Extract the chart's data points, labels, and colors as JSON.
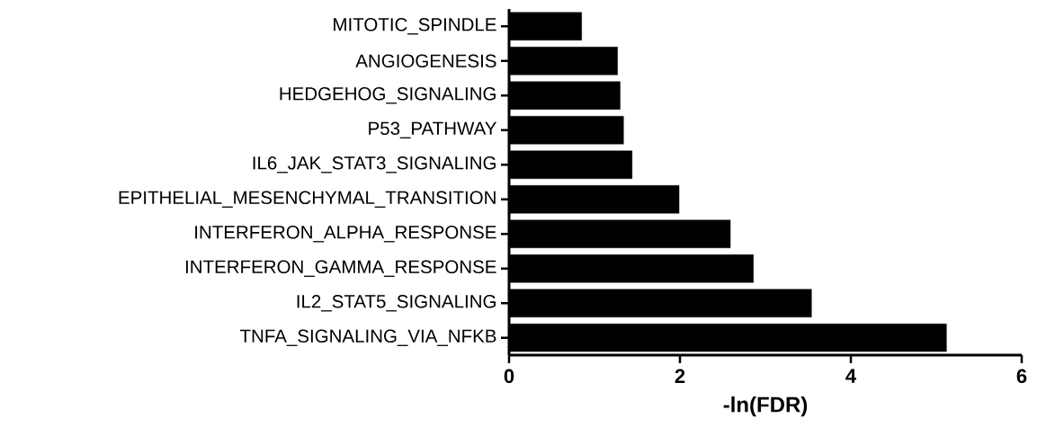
{
  "chart_data": {
    "type": "bar",
    "orientation": "horizontal",
    "xlabel": "-ln(FDR)",
    "categories": [
      "MITOTIC_SPINDLE",
      "ANGIOGENESIS",
      "HEDGEHOG_SIGNALING",
      "P53_PATHWAY",
      "IL6_JAK_STAT3_SIGNALING",
      "EPITHELIAL_MESENCHYMAL_TRANSITION",
      "INTERFERON_ALPHA_RESPONSE",
      "INTERFERON_GAMMA_RESPONSE",
      "IL2_STAT5_SIGNALING",
      "TNFA_SIGNALING_VIA_NFKB"
    ],
    "values": [
      0.85,
      1.27,
      1.3,
      1.34,
      1.44,
      1.99,
      2.59,
      2.86,
      3.54,
      5.12
    ],
    "color": "#000000",
    "xlim": [
      0,
      6
    ],
    "xticks": [
      0,
      2,
      4,
      6
    ],
    "grid": false
  }
}
